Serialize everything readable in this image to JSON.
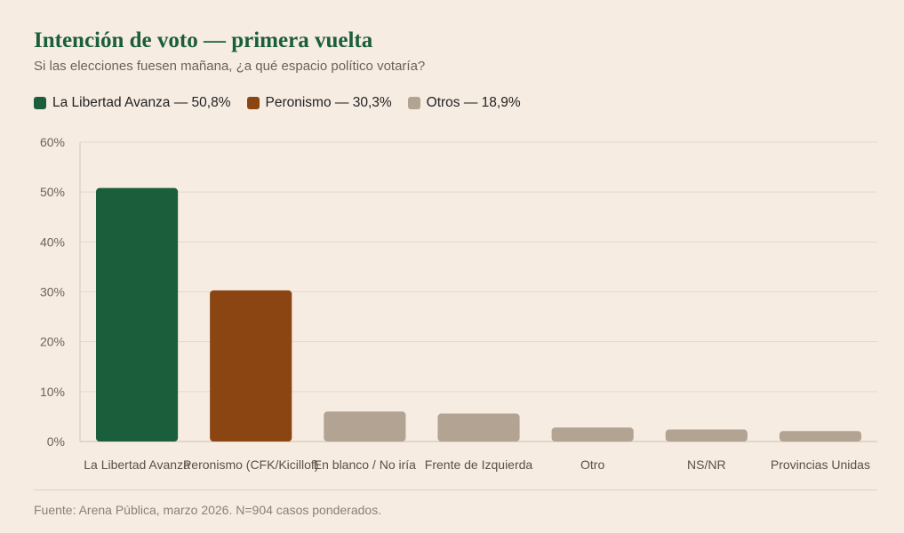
{
  "header": {
    "title": "Intención de voto — primera vuelta",
    "subtitle": "Si las elecciones fuesen mañana, ¿a qué espacio político votaría?"
  },
  "legend": [
    {
      "label": "La Libertad Avanza — 50,8%",
      "color": "#1b5e3b"
    },
    {
      "label": "Peronismo — 30,3%",
      "color": "#8b4513"
    },
    {
      "label": "Otros — 18,9%",
      "color": "#b2a393"
    }
  ],
  "chart_data": {
    "type": "bar",
    "categories": [
      "La Libertad Avanza",
      "Peronismo (CFK/Kicillof)",
      "En blanco / No iría",
      "Frente de Izquierda",
      "Otro",
      "NS/NR",
      "Provincias Unidas"
    ],
    "values": [
      50.8,
      30.3,
      6.0,
      5.6,
      2.8,
      2.4,
      2.1
    ],
    "colors": [
      "#1b5e3b",
      "#8b4513",
      "#b2a393",
      "#b2a393",
      "#b2a393",
      "#b2a393",
      "#b2a393"
    ],
    "ylim": [
      0,
      60
    ],
    "yticks": [
      "0%",
      "10%",
      "20%",
      "30%",
      "40%",
      "50%",
      "60%"
    ],
    "grid": true,
    "legend_placement": "top-left"
  },
  "footer": {
    "source": "Fuente: Arena Pública, marzo 2026. N=904 casos ponderados."
  }
}
